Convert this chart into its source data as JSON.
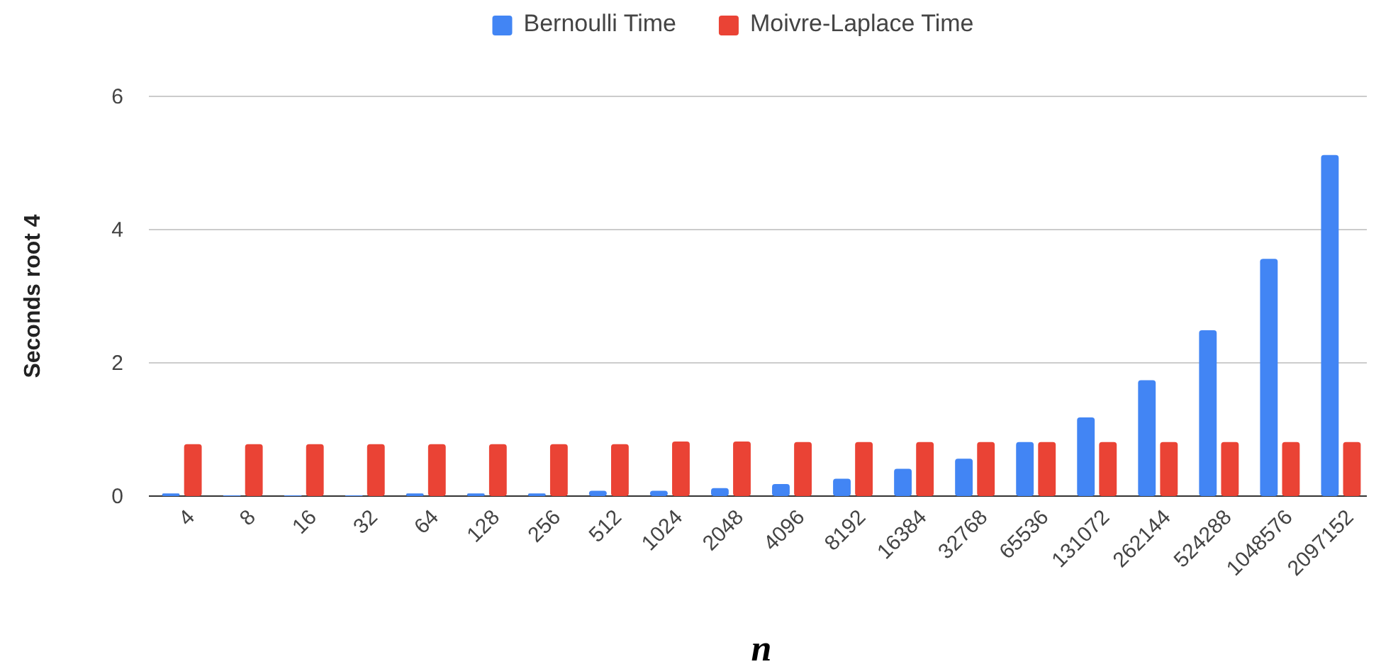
{
  "chart_data": {
    "type": "bar",
    "xlabel": "n",
    "ylabel": "Seconds root 4",
    "categories": [
      "4",
      "8",
      "16",
      "32",
      "64",
      "128",
      "256",
      "512",
      "1024",
      "2048",
      "4096",
      "8192",
      "16384",
      "32768",
      "65536",
      "131072",
      "262144",
      "524288",
      "1048576",
      "2097152"
    ],
    "series": [
      {
        "name": "Bernoulli Time",
        "color": "#4285f4",
        "values": [
          0.04,
          0.01,
          0.01,
          0.01,
          0.04,
          0.04,
          0.04,
          0.08,
          0.08,
          0.12,
          0.18,
          0.26,
          0.41,
          0.56,
          0.81,
          1.18,
          1.74,
          2.49,
          3.56,
          5.12
        ]
      },
      {
        "name": "Moivre-Laplace Time",
        "color": "#ea4335",
        "values": [
          0.78,
          0.78,
          0.78,
          0.78,
          0.78,
          0.78,
          0.78,
          0.78,
          0.82,
          0.82,
          0.81,
          0.81,
          0.81,
          0.81,
          0.81,
          0.81,
          0.81,
          0.81,
          0.81,
          0.81
        ]
      }
    ],
    "ylim": [
      0,
      6
    ],
    "yticks": [
      0,
      2,
      4,
      6
    ],
    "grid": "y",
    "legend": "top"
  }
}
